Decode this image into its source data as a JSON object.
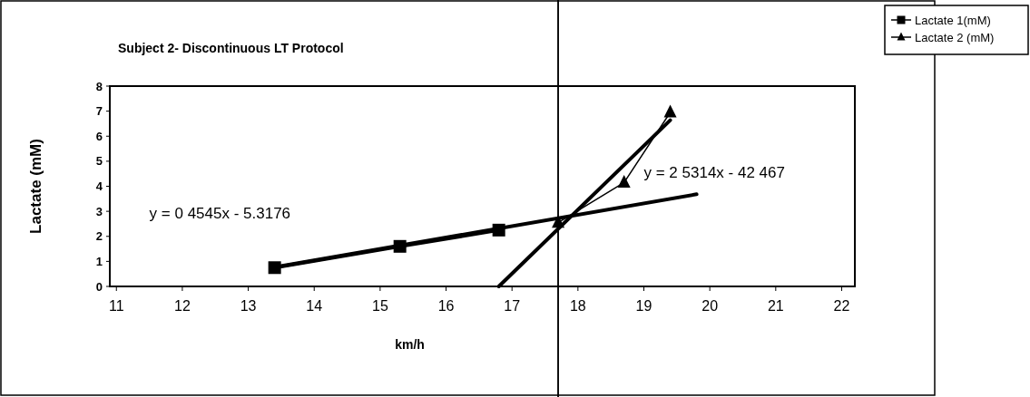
{
  "chart_data": {
    "type": "line",
    "title": "Subject 2- Discontinuous LT Protocol",
    "xlabel": "km/h",
    "ylabel": "Lactate (mM)",
    "xlim": [
      10.9,
      22.2
    ],
    "xticks": [
      11,
      12,
      13,
      14,
      15,
      16,
      17,
      18,
      19,
      20,
      21,
      22
    ],
    "ylim": [
      0,
      8
    ],
    "yticks": [
      0,
      1,
      2,
      3,
      4,
      5,
      6,
      7,
      8
    ],
    "legend": "top right",
    "series": [
      {
        "name": "Lactate 1(mM)",
        "marker": "square",
        "color": "#000000",
        "x": [
          13.4,
          15.3,
          16.8
        ],
        "values": [
          0.75,
          1.6,
          2.25
        ]
      },
      {
        "name": "Lactate 2 (mM)",
        "marker": "triangle",
        "color": "#000000",
        "x": [
          17.7,
          18.7,
          19.4
        ],
        "values": [
          2.55,
          4.15,
          6.95
        ]
      },
      {
        "marker": "none",
        "color": "#000000",
        "x": [
          13.4,
          19.8
        ],
        "values": [
          0.77,
          3.68
        ]
      },
      {
        "marker": "none",
        "color": "#000000",
        "x": [
          16.8,
          19.4
        ],
        "values": [
          0,
          6.64
        ]
      }
    ],
    "ref_lines": [
      {
        "axis": "x",
        "value": 17.7,
        "color": "#000000"
      }
    ],
    "annotations": [
      "y = 0 4545x - 5.3176",
      "y = 2 5314x - 42 467"
    ]
  }
}
